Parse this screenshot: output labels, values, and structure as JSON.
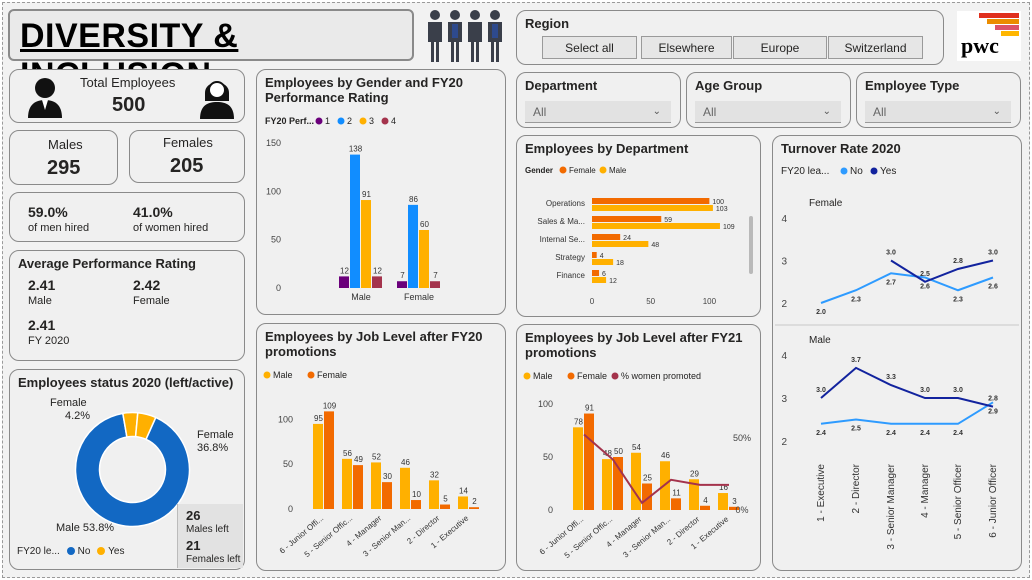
{
  "header": {
    "title": "DIVERSITY & INCLUSION",
    "logo_text": "pwc"
  },
  "region": {
    "title": "Region",
    "options": [
      "Select all",
      "Elsewhere",
      "Europe",
      "Switzerland"
    ]
  },
  "filters": {
    "department": {
      "title": "Department",
      "value": "All"
    },
    "age_group": {
      "title": "Age Group",
      "value": "All"
    },
    "employee_type": {
      "title": "Employee Type",
      "value": "All"
    }
  },
  "kpis": {
    "total_label": "Total Employees",
    "total_value": "500",
    "males_label": "Males",
    "males_value": "295",
    "females_label": "Females",
    "females_value": "205",
    "men_hired_pct": "59.0%",
    "men_hired_label": "of men hired",
    "women_hired_pct": "41.0%",
    "women_hired_label": "of women hired"
  },
  "performance": {
    "title": "Average Performance Rating",
    "male_value": "2.41",
    "male_label": "Male",
    "female_value": "2.42",
    "female_label": "Female",
    "fy_value": "2.41",
    "fy_label": "FY 2020"
  },
  "status": {
    "title": "Employees status 2020 (left/active)",
    "legend_title": "FY20 le...",
    "legend_no": "No",
    "legend_yes": "Yes",
    "males_left_value": "26",
    "males_left_label": "Males left",
    "females_left_value": "21",
    "females_left_label": "Females left",
    "label_female_small": "Female",
    "label_female_small_pct": "4.2%",
    "label_female_big": "Female",
    "label_female_big_pct": "36.8%",
    "label_male": "Male 53.8%"
  },
  "colors": {
    "blue": "#118DFF",
    "yellow": "#FFB000",
    "orange": "#F26A00",
    "darkblue": "#12239E",
    "purple": "#6B007B",
    "maroon": "#A4334C",
    "deepblue": "#1268C3",
    "lightblue": "#2E9BFF"
  },
  "chart_data": [
    {
      "id": "gender_perf",
      "title": "Employees by Gender and FY20 Performance Rating",
      "type": "bar",
      "legend_title": "FY20 Perf...",
      "categories": [
        "Male",
        "Female"
      ],
      "series": [
        {
          "name": "1",
          "values": [
            12,
            7
          ]
        },
        {
          "name": "2",
          "values": [
            138,
            86
          ]
        },
        {
          "name": "3",
          "values": [
            91,
            60
          ]
        },
        {
          "name": "4",
          "values": [
            12,
            7
          ]
        }
      ],
      "yticks": [
        "0",
        "50",
        "100",
        "150"
      ],
      "ylim": [
        0,
        150
      ]
    },
    {
      "id": "department",
      "title": "Employees by Department",
      "type": "bar",
      "legend_title": "Gender",
      "categories": [
        "Operations",
        "Sales & Ma...",
        "Internal Se...",
        "Strategy",
        "Finance"
      ],
      "series": [
        {
          "name": "Female",
          "values": [
            100,
            59,
            24,
            4,
            6
          ]
        },
        {
          "name": "Male",
          "values": [
            103,
            109,
            48,
            18,
            12
          ]
        }
      ],
      "xticks": [
        "0",
        "50",
        "100"
      ],
      "xlim": [
        0,
        115
      ]
    },
    {
      "id": "job_fy20",
      "title": "Employees by Job Level after FY20 promotions",
      "type": "bar",
      "categories": [
        "6 - Junior Offi...",
        "5 - Senior Offic...",
        "4 - Manager",
        "3 - Senior Man...",
        "2 - Director",
        "1 - Executive"
      ],
      "series": [
        {
          "name": "Male",
          "values": [
            95,
            56,
            52,
            46,
            32,
            14
          ]
        },
        {
          "name": "Female",
          "values": [
            109,
            49,
            30,
            10,
            5,
            2
          ]
        }
      ],
      "yticks": [
        "0",
        "50",
        "100"
      ],
      "ylim": [
        0,
        115
      ]
    },
    {
      "id": "job_fy21",
      "title": "Employees by Job Level after FY21 promotions",
      "type": "bar",
      "categories": [
        "6 - Junior Offi...",
        "5 - Senior Offic...",
        "4 - Manager",
        "3 - Senior Man...",
        "2 - Director",
        "1 - Executive"
      ],
      "series": [
        {
          "name": "Male",
          "values": [
            78,
            48,
            54,
            46,
            29,
            16
          ]
        },
        {
          "name": "Female",
          "values": [
            91,
            50,
            25,
            11,
            4,
            3
          ]
        }
      ],
      "line": {
        "name": "% women promoted",
        "values": [
          0.75,
          0.5,
          0.07,
          0.3,
          0.25,
          0.25
        ]
      },
      "yticks": [
        "0",
        "50",
        "100"
      ],
      "ylim": [
        0,
        100
      ],
      "y2ticks": [
        "0%",
        "50%"
      ]
    },
    {
      "id": "turnover",
      "title": "Turnover Rate 2020",
      "type": "line",
      "legend_title": "FY20 lea...",
      "legend_no": "No",
      "legend_yes": "Yes",
      "categories": [
        "1 - Executive",
        "2 - Director",
        "3 - Senior Manager",
        "4 - Manager",
        "5 - Senior Officer",
        "6 - Junior Officer"
      ],
      "panels": [
        {
          "name": "Female",
          "no": [
            2.0,
            2.3,
            2.7,
            2.6,
            2.3,
            2.6
          ],
          "yes": [
            null,
            null,
            3.0,
            2.5,
            2.8,
            3.0
          ],
          "yticks": [
            "2",
            "3",
            "4"
          ]
        },
        {
          "name": "Male",
          "no": [
            2.4,
            2.5,
            2.4,
            2.4,
            2.4,
            2.9
          ],
          "yes": [
            3.0,
            3.7,
            3.3,
            3.0,
            3.0,
            2.8
          ],
          "yticks": [
            "2",
            "3",
            "4"
          ]
        }
      ],
      "ylim": [
        2,
        4
      ]
    }
  ]
}
